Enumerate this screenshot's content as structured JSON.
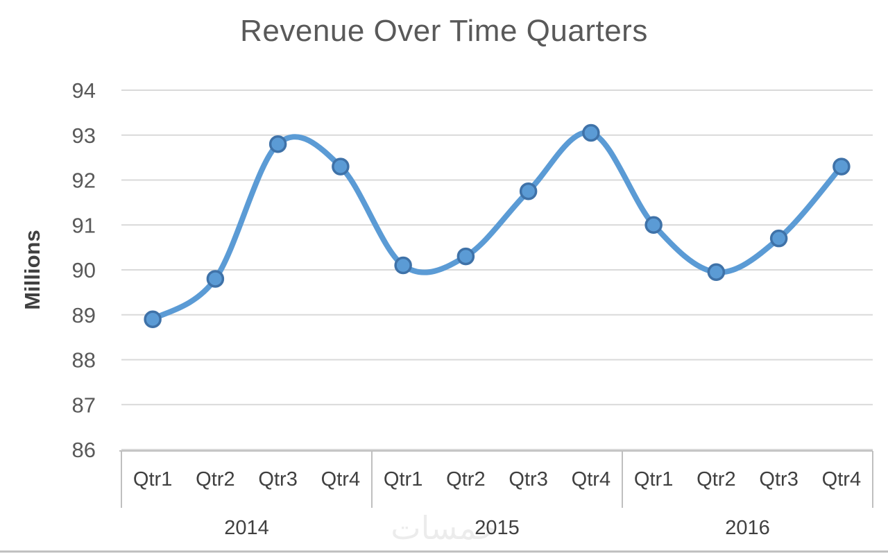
{
  "page": {
    "background": "#ffffff"
  },
  "chart_data": {
    "type": "line",
    "title": "Revenue Over Time Quarters",
    "xlabel": "",
    "ylabel": "Millions",
    "ylim": [
      86,
      94
    ],
    "ytick_step": 1,
    "grid": true,
    "legend": "none",
    "smooth": true,
    "categories": [
      "Qtr1",
      "Qtr2",
      "Qtr3",
      "Qtr4",
      "Qtr1",
      "Qtr2",
      "Qtr3",
      "Qtr4",
      "Qtr1",
      "Qtr2",
      "Qtr3",
      "Qtr4"
    ],
    "year_groups": [
      {
        "label": "2014",
        "span": 4
      },
      {
        "label": "2015",
        "span": 4
      },
      {
        "label": "2016",
        "span": 4
      }
    ],
    "series": [
      {
        "name": "Revenue",
        "values": [
          88.9,
          89.8,
          92.8,
          92.3,
          90.1,
          90.3,
          91.75,
          93.05,
          91.0,
          89.95,
          90.7,
          92.3
        ]
      }
    ],
    "line_color": "#5B9BD5",
    "marker_fill": "#5B9BD5",
    "marker_stroke": "#3F72A8",
    "grid_color": "#d9d9d9",
    "axis_line_color": "#bfbfbf",
    "title_color": "#595959",
    "tick_text_color": "#595959",
    "category_text_color": "#404040"
  },
  "watermark": {
    "text": "خمسات"
  }
}
